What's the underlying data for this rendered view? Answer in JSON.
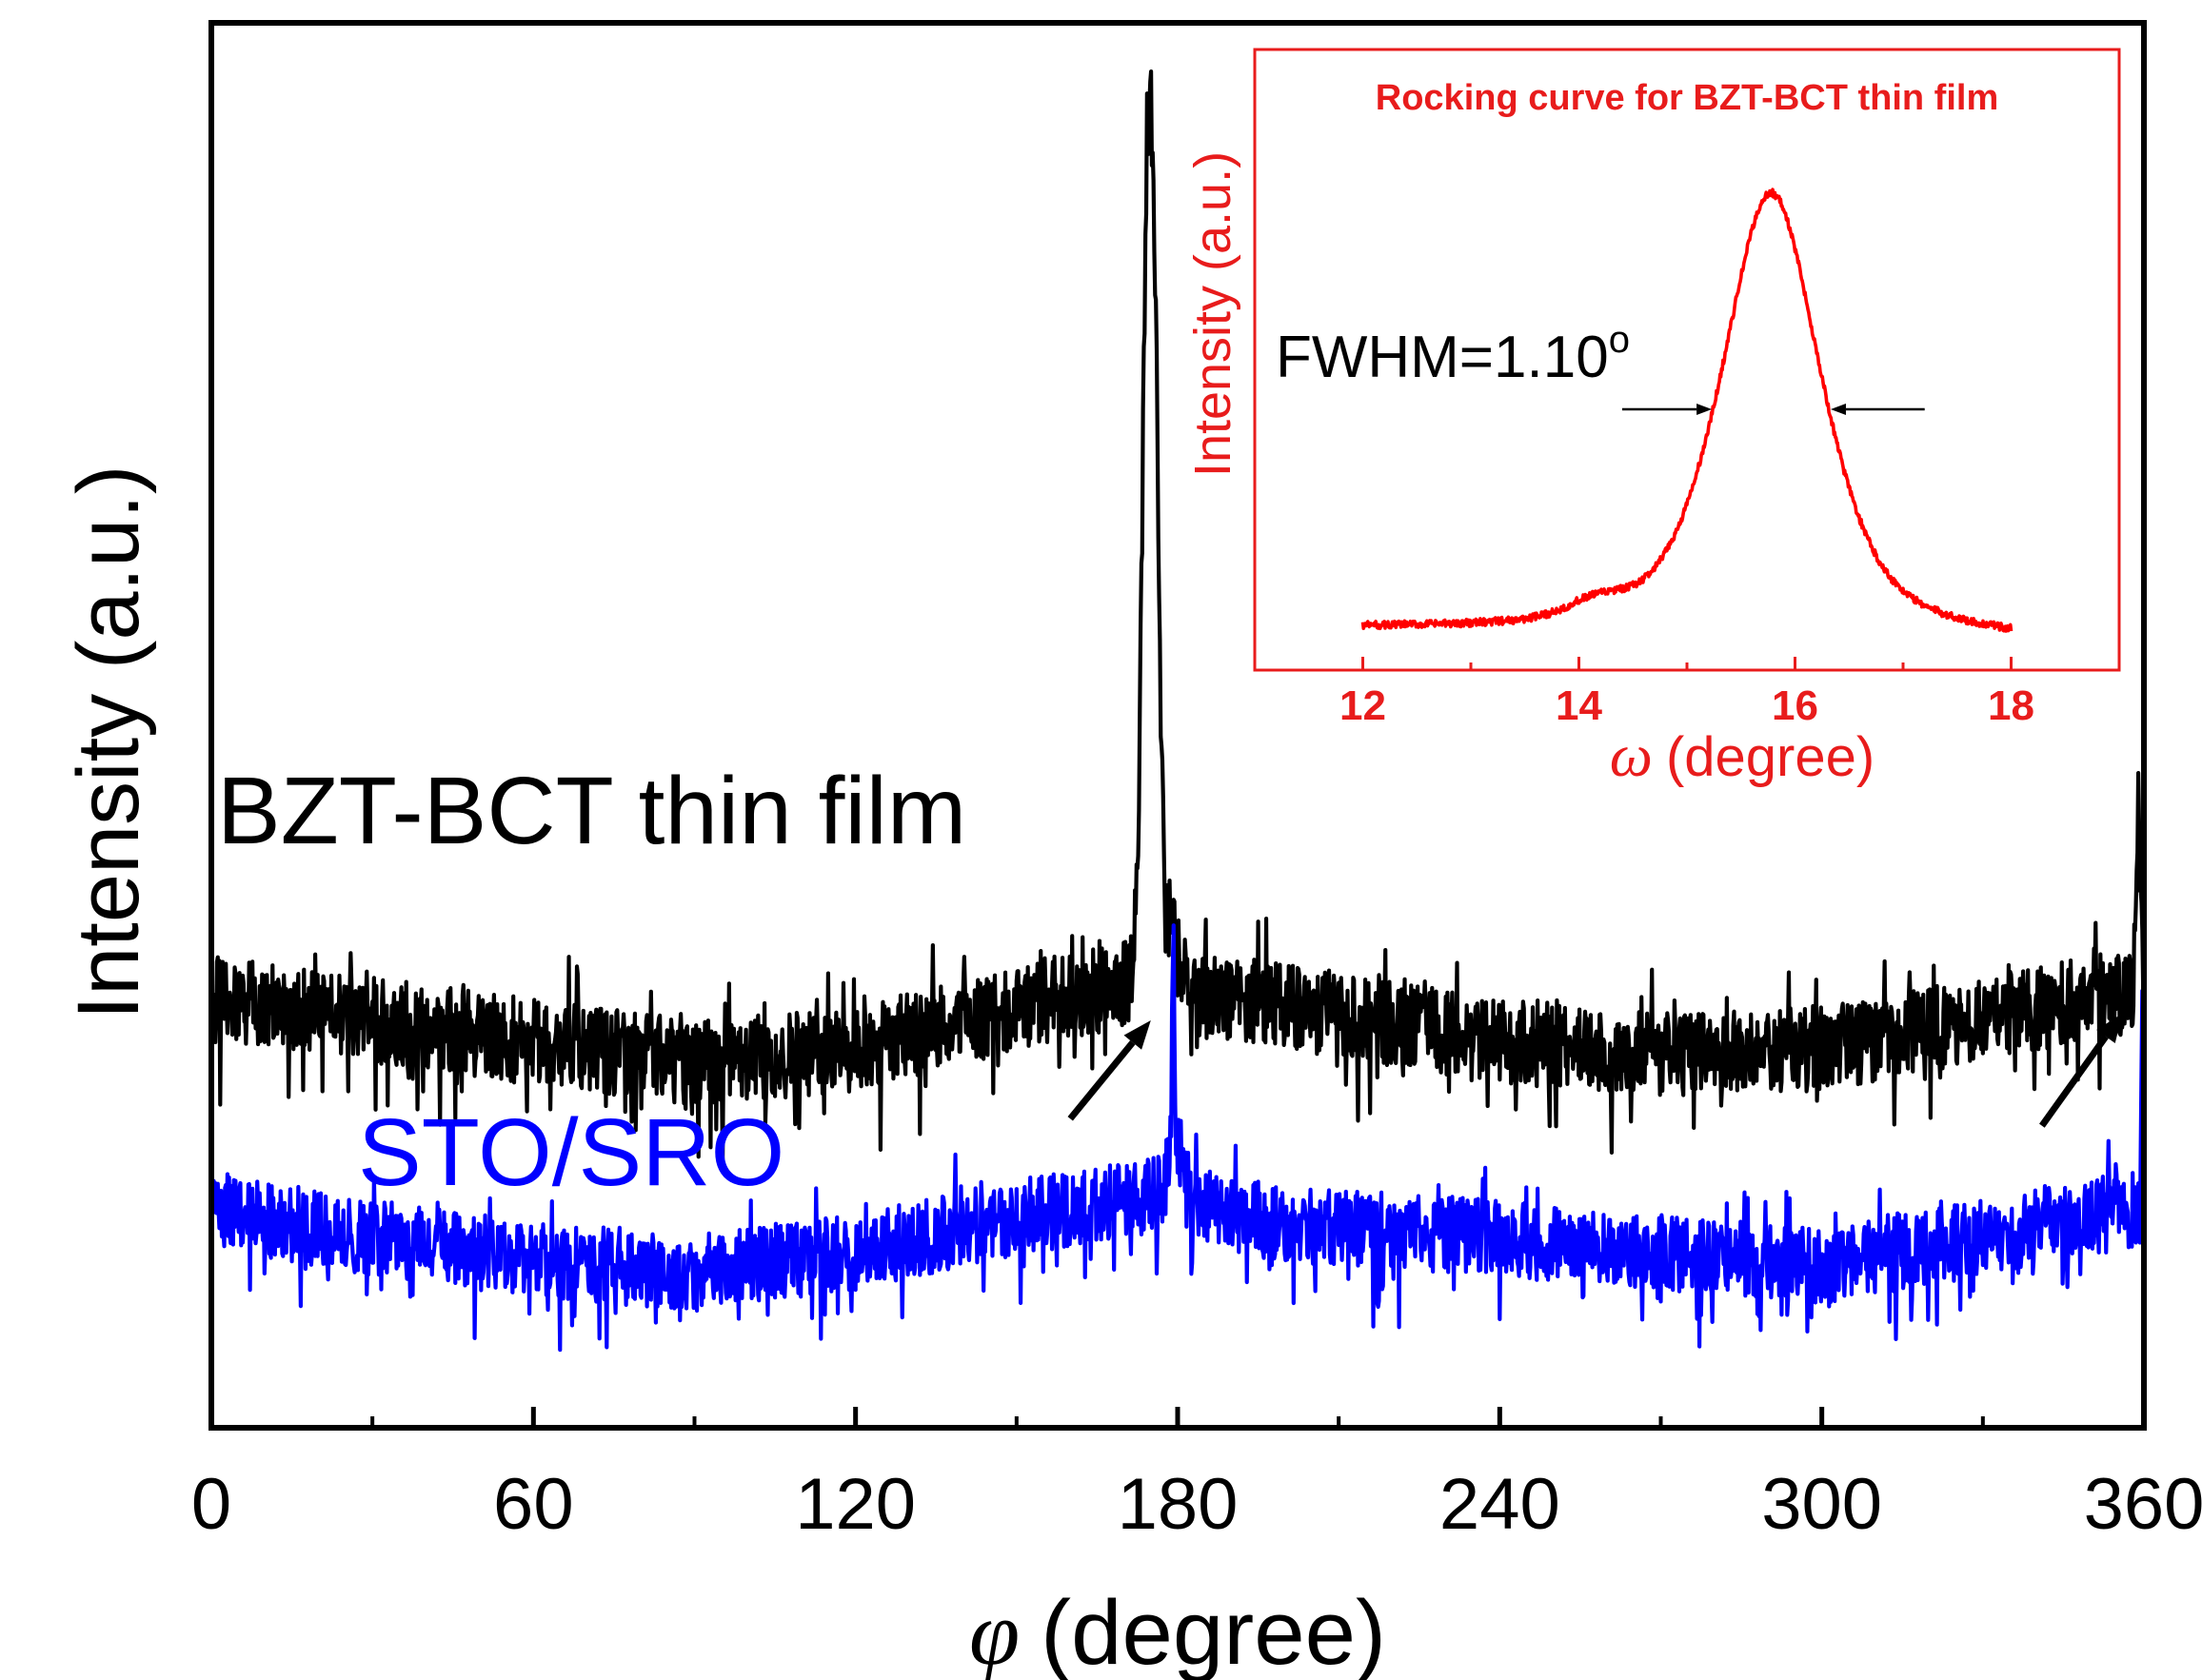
{
  "chart_data": [
    {
      "id": "main",
      "type": "line",
      "xlabel_symbol": "φ",
      "xlabel": "(degree)",
      "ylabel": "Intensity (a.u.)",
      "xlim": [
        0,
        360
      ],
      "ylim": [
        0,
        100
      ],
      "xticks": [
        0,
        60,
        120,
        180,
        240,
        300,
        360
      ],
      "xtick_labels": [
        "0",
        "60",
        "120",
        "180",
        "240",
        "300",
        "360"
      ],
      "minor_xticks": [
        30,
        90,
        150,
        210,
        270,
        330
      ],
      "series": [
        {
          "name": "BZT-BCT thin film",
          "color": "#000000",
          "baseline": [
            [
              0,
              30.5
            ],
            [
              30,
              29
            ],
            [
              60,
              27.5
            ],
            [
              90,
              26
            ],
            [
              120,
              27
            ],
            [
              150,
              30
            ],
            [
              170,
              31.5
            ],
            [
              200,
              30
            ],
            [
              240,
              27.5
            ],
            [
              270,
              26.5
            ],
            [
              300,
              27
            ],
            [
              330,
              29
            ],
            [
              355,
              31
            ],
            [
              360,
              31
            ]
          ],
          "noise": 3.4,
          "peaks": [
            {
              "x": 174.2,
              "height": 44,
              "width": 0.9
            },
            {
              "x": 175.6,
              "height": 38,
              "width": 0.9
            },
            {
              "x": 176.8,
              "height": 6,
              "width": 2.5
            },
            {
              "x": 359.0,
              "height": 10,
              "width": 0.45
            }
          ]
        },
        {
          "name": "STO/SRO",
          "color": "#0000ff",
          "baseline": [
            [
              0,
              15.5
            ],
            [
              30,
              13.5
            ],
            [
              60,
              12
            ],
            [
              90,
              11
            ],
            [
              120,
              12.5
            ],
            [
              150,
              15
            ],
            [
              175,
              16.5
            ],
            [
              200,
              14.5
            ],
            [
              240,
              13.5
            ],
            [
              270,
              12.5
            ],
            [
              300,
              11.5
            ],
            [
              330,
              13.5
            ],
            [
              355,
              15.5
            ],
            [
              360,
              15.5
            ]
          ],
          "noise": 3.0,
          "peaks": [
            {
              "x": 179.2,
              "height": 16,
              "width": 0.22
            },
            {
              "x": 179.9,
              "height": 4,
              "width": 1.5
            },
            {
              "x": 359.7,
              "height": 14,
              "width": 0.15
            }
          ]
        }
      ],
      "annotations": [
        {
          "text": "BZT-BCT thin film",
          "color": "#000000"
        },
        {
          "text": "STO/SRO",
          "color": "#0000ff"
        }
      ],
      "arrows": [
        {
          "from": [
            160,
            22
          ],
          "to": [
            175,
            29
          ]
        },
        {
          "from": [
            341,
            21.5
          ],
          "to": [
            356,
            29.5
          ]
        }
      ]
    },
    {
      "id": "inset",
      "type": "line",
      "title": "Rocking curve for BZT-BCT thin film",
      "xlabel_symbol": "ω",
      "xlabel": "(degree)",
      "ylabel": "Intensity (a.u.)",
      "xlim": [
        11,
        19
      ],
      "ylim": [
        0,
        100
      ],
      "xticks": [
        12,
        14,
        16,
        18
      ],
      "xtick_labels": [
        "12",
        "14",
        "16",
        "18"
      ],
      "minor_xticks": [
        13,
        15,
        17
      ],
      "series": [
        {
          "name": "Rocking curve",
          "color": "#ff0000",
          "x_range": [
            12,
            18
          ],
          "peak_center": 15.78,
          "peak_height": 84,
          "fwhm": 1.1,
          "background_start": 3.5,
          "background_end": 1.0,
          "noise": 0.7
        }
      ],
      "fwhm_label": "FWHM=1.10",
      "fwhm_superscript": "o",
      "fwhm_arrows": [
        {
          "from": 14.4,
          "to": 15.23
        },
        {
          "from": 17.2,
          "to": 16.33
        }
      ],
      "fwhm_level": 46
    }
  ],
  "colors": {
    "axes": "#000000",
    "inset_frame": "#e81c1c",
    "inset_text": "#e81c1c"
  }
}
